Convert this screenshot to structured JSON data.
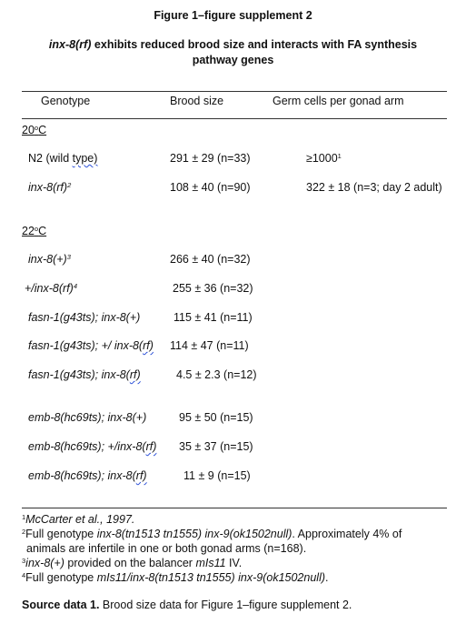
{
  "title": "Figure 1–figure supplement 2",
  "subtitle": {
    "gene": "inx-8(rf)",
    "line1_rest": " exhibits reduced brood size and interacts with FA synthesis",
    "line2": "pathway genes"
  },
  "table": {
    "headers": [
      "Genotype",
      "Brood size",
      "Germ cells per gonad arm"
    ],
    "sections": [
      {
        "temp_num": "20",
        "temp_deg": "o",
        "temp_unit": "C",
        "rows": [
          {
            "pre": "N2 (wild ",
            "wavy": "type)",
            "post": "",
            "italic": false,
            "sup": "",
            "brood": "291 ± 29 (n=33)",
            "germ": "≥1000",
            "germ_sup": "1"
          },
          {
            "pre": "inx-8(rf)",
            "wavy": "",
            "post": "",
            "italic": true,
            "sup": "2",
            "brood": "108 ± 40 (n=90)",
            "germ": "322 ± 18 (n=3; day 2 adult)",
            "germ_sup": ""
          }
        ]
      },
      {
        "temp_num": "22",
        "temp_deg": "o",
        "temp_unit": "C",
        "rows": [
          {
            "pre": "inx-8(+)",
            "wavy": "",
            "post": "",
            "italic": true,
            "sup": "3",
            "brood": "266 ± 40 (n=32)",
            "germ": "",
            "germ_sup": ""
          },
          {
            "pre": "+/inx-8(rf)",
            "wavy": "",
            "post": "",
            "italic": true,
            "sup": "4",
            "brood": "255 ± 36 (n=32)",
            "germ": "",
            "germ_sup": ""
          },
          {
            "pre": "fasn-1(g43ts); inx-8(+)",
            "wavy": "",
            "post": "",
            "italic": true,
            "sup": "",
            "brood": "115 ± 41 (n=11)",
            "germ": "",
            "germ_sup": ""
          },
          {
            "pre": "fasn-1(g43ts); +/ inx-8(",
            "wavy": "rf)",
            "post": "",
            "italic": true,
            "sup": "",
            "brood": "114 ± 47 (n=11)",
            "germ": "",
            "germ_sup": ""
          },
          {
            "pre": "fasn-1(g43ts); inx-8(",
            "wavy": "rf)",
            "post": "",
            "italic": true,
            "sup": "",
            "brood": "4.5 ± 2.3 (n=12)",
            "germ": "",
            "germ_sup": ""
          },
          {
            "pre": "emb-8(hc69ts); inx-8(+)",
            "wavy": "",
            "post": "",
            "italic": true,
            "sup": "",
            "brood": "95 ± 50 (n=15)",
            "germ": "",
            "germ_sup": ""
          },
          {
            "pre": "emb-8(hc69ts); +/inx-8(",
            "wavy": "rf)",
            "post": "",
            "italic": true,
            "sup": "",
            "brood": "35 ± 37 (n=15)",
            "germ": "",
            "germ_sup": ""
          },
          {
            "pre": "emb-8(hc69ts); inx-8(",
            "wavy": "rf)",
            "post": "",
            "italic": true,
            "sup": "",
            "brood": "11 ± 9 (n=15)",
            "germ": "",
            "germ_sup": ""
          }
        ]
      }
    ]
  },
  "footnotes": {
    "fn1": {
      "num": "1",
      "text": "McCarter et al., 1997."
    },
    "fn2": {
      "num": "2",
      "lead": "Full genotype ",
      "genotype": "inx-8(tn1513 tn1555) inx-9(ok1502null)",
      "rest": ". Approximately 4% of",
      "cont": "animals are infertile in one or both gonad arms (n=168)."
    },
    "fn3": {
      "num": "3",
      "gene": "inx-8(+)",
      "mid": " provided on the balancer ",
      "balancer": "mIs11",
      "tail": " IV."
    },
    "fn4": {
      "num": "4",
      "lead": "Full genotype ",
      "genotype": "mIs11/inx-8(tn1513 tn1555) inx-9(ok1502null)",
      "tail": "."
    }
  },
  "source": {
    "label": "Source data 1.",
    "text": " Brood size data for Figure 1–figure supplement 2."
  }
}
